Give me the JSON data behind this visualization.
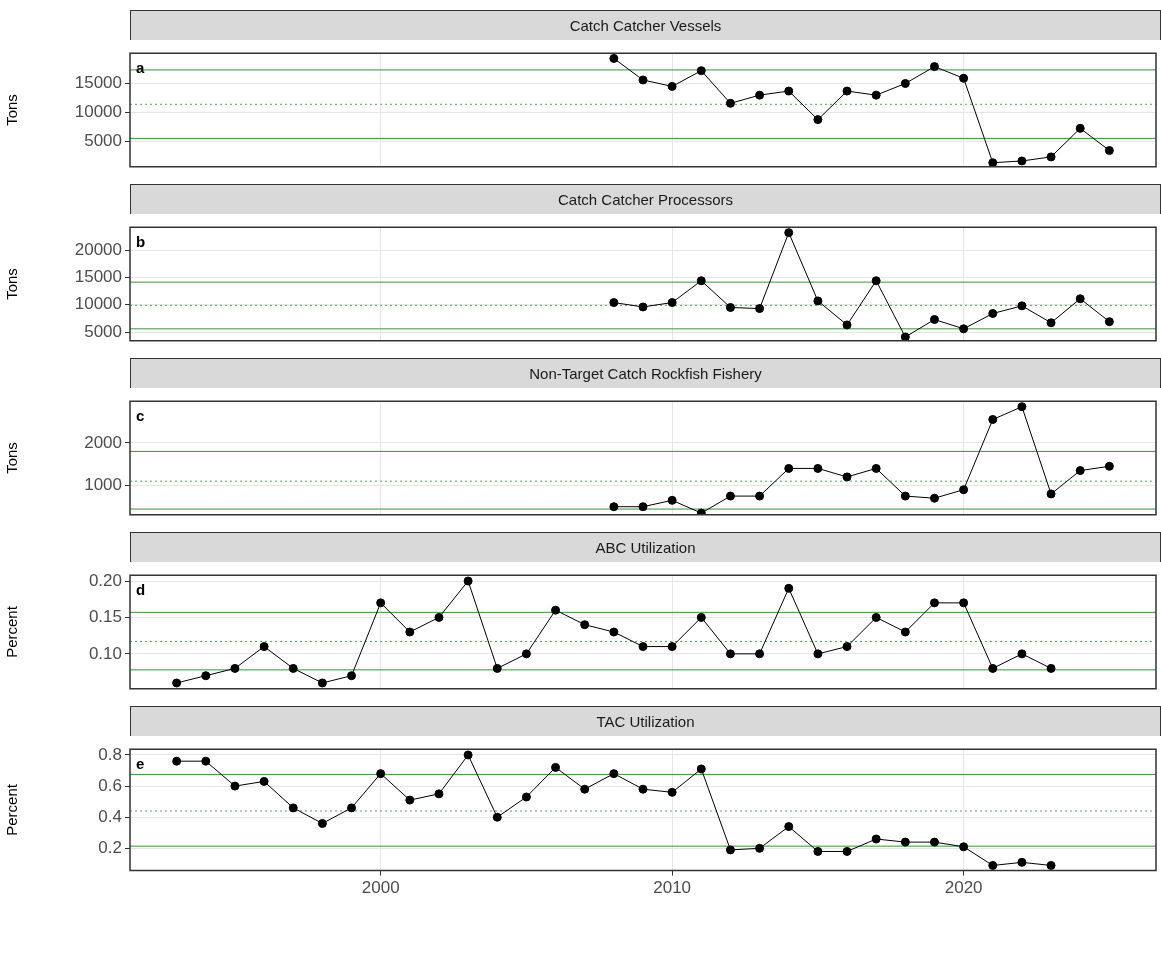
{
  "chart_data": [
    {
      "type": "line",
      "title": "Catch Catcher Vessels",
      "ylabel": "Tons",
      "annotations": [
        "a"
      ],
      "marker": "circle",
      "grid": true,
      "tick_labels": "y",
      "x": [
        2008,
        2009,
        2010,
        2011,
        2012,
        2013,
        2014,
        2015,
        2016,
        2017,
        2018,
        2019,
        2020,
        2021,
        2022,
        2023,
        2024,
        2025
      ],
      "series": [
        {
          "color": "#000000",
          "values": [
            19300,
            15600,
            14500,
            17200,
            11600,
            13000,
            13700,
            8800,
            13700,
            13000,
            15000,
            17900,
            15900,
            1400,
            1700,
            2400,
            7300,
            3500
          ]
        }
      ],
      "xlim": [
        1991.4,
        2026.6
      ],
      "xticks": [
        2000,
        2010,
        2020
      ],
      "ylim": [
        700,
        20200
      ],
      "yticks": [
        5000,
        10000,
        15000
      ],
      "ref_lines": [
        {
          "axis": "y",
          "value": 17330,
          "color": "#3d8f3d",
          "line_style": "solid"
        },
        {
          "axis": "y",
          "value": 11430,
          "color": "#5f9f5f",
          "line_style": "dotted"
        },
        {
          "axis": "y",
          "value": 5580,
          "color": "#3d8f3d",
          "line_style": "solid"
        }
      ]
    },
    {
      "type": "line",
      "title": "Catch Catcher Processors",
      "ylabel": "Tons",
      "annotations": [
        "b"
      ],
      "marker": "circle",
      "grid": true,
      "tick_labels": "y",
      "x": [
        2008,
        2009,
        2010,
        2011,
        2012,
        2013,
        2014,
        2015,
        2016,
        2017,
        2018,
        2019,
        2020,
        2021,
        2022,
        2023,
        2024,
        2025
      ],
      "series": [
        {
          "color": "#000000",
          "values": [
            10400,
            9600,
            10400,
            14400,
            9500,
            9300,
            23200,
            10700,
            6300,
            14400,
            4100,
            7300,
            5600,
            8400,
            9800,
            6700,
            11100,
            6900
          ]
        }
      ],
      "xlim": [
        1991.4,
        2026.6
      ],
      "xticks": [
        2000,
        2010,
        2020
      ],
      "ylim": [
        3400,
        24200
      ],
      "yticks": [
        5000,
        10000,
        15000,
        20000
      ],
      "ref_lines": [
        {
          "axis": "y",
          "value": 14140,
          "color": "#3d8f3d",
          "line_style": "solid"
        },
        {
          "axis": "y",
          "value": 9880,
          "color": "#5f9f5f",
          "line_style": "dotted"
        },
        {
          "axis": "y",
          "value": 5590,
          "color": "#3d8f3d",
          "line_style": "solid"
        }
      ]
    },
    {
      "type": "line",
      "title": "Non-Target Catch Rockfish Fishery",
      "ylabel": "Tons",
      "annotations": [
        "c"
      ],
      "marker": "circle",
      "grid": true,
      "tick_labels": "y",
      "x": [
        2008,
        2009,
        2010,
        2011,
        2012,
        2013,
        2014,
        2015,
        2016,
        2017,
        2018,
        2019,
        2020,
        2021,
        2022,
        2023,
        2024,
        2025
      ],
      "series": [
        {
          "color": "#000000",
          "values": [
            500,
            500,
            650,
            350,
            750,
            750,
            1400,
            1400,
            1200,
            1400,
            750,
            700,
            900,
            2550,
            2850,
            800,
            1350,
            1450
          ]
        }
      ],
      "xlim": [
        1991.4,
        2026.6
      ],
      "xticks": [
        2000,
        2010,
        2020
      ],
      "ylim": [
        310,
        2980
      ],
      "yticks": [
        1000,
        2000
      ],
      "ref_lines": [
        {
          "axis": "y",
          "value": 1800,
          "color": "#3d8f3d",
          "line_style": "solid"
        },
        {
          "axis": "y",
          "value": 1100,
          "color": "#5f9f5f",
          "line_style": "dotted"
        },
        {
          "axis": "y",
          "value": 445,
          "color": "#3d8f3d",
          "line_style": "solid"
        }
      ]
    },
    {
      "type": "line",
      "title": "ABC Utilization",
      "ylabel": "Percent",
      "annotations": [
        "d"
      ],
      "marker": "circle",
      "grid": true,
      "tick_labels": "y",
      "x": [
        1993,
        1994,
        1995,
        1996,
        1997,
        1998,
        1999,
        2000,
        2001,
        2002,
        2003,
        2004,
        2005,
        2006,
        2007,
        2008,
        2009,
        2010,
        2011,
        2012,
        2013,
        2014,
        2015,
        2016,
        2017,
        2018,
        2019,
        2020,
        2021,
        2022,
        2023
      ],
      "series": [
        {
          "color": "#000000",
          "values": [
            0.06,
            0.07,
            0.08,
            0.11,
            0.08,
            0.06,
            0.07,
            0.17,
            0.13,
            0.15,
            0.2,
            0.08,
            0.1,
            0.16,
            0.14,
            0.13,
            0.11,
            0.11,
            0.15,
            0.1,
            0.1,
            0.19,
            0.1,
            0.11,
            0.15,
            0.13,
            0.17,
            0.17,
            0.08,
            0.1,
            0.08
          ]
        }
      ],
      "xlim": [
        1991.4,
        2026.6
      ],
      "xticks": [
        2000,
        2010,
        2020
      ],
      "ylim": [
        0.052,
        0.208
      ],
      "yticks": [
        {
          "value": 0.1,
          "label": "0.10"
        },
        {
          "value": 0.15,
          "label": "0.15"
        },
        {
          "value": 0.2,
          "label": "0.20"
        }
      ],
      "ref_lines": [
        {
          "axis": "y",
          "value": 0.157,
          "color": "#3d8f3d",
          "line_style": "solid"
        },
        {
          "axis": "y",
          "value": 0.117,
          "color": "#5f9f5f",
          "line_style": "dotted"
        },
        {
          "axis": "y",
          "value": 0.078,
          "color": "#3d8f3d",
          "line_style": "solid"
        }
      ]
    },
    {
      "type": "line",
      "title": "TAC Utilization",
      "ylabel": "Percent",
      "annotations": [
        "e"
      ],
      "marker": "circle",
      "grid": true,
      "x": [
        1993,
        1994,
        1995,
        1996,
        1997,
        1998,
        1999,
        2000,
        2001,
        2002,
        2003,
        2004,
        2005,
        2006,
        2007,
        2008,
        2009,
        2010,
        2011,
        2012,
        2013,
        2014,
        2015,
        2016,
        2017,
        2018,
        2019,
        2020,
        2021,
        2022,
        2023
      ],
      "series": [
        {
          "color": "#000000",
          "values": [
            0.76,
            0.76,
            0.6,
            0.63,
            0.46,
            0.36,
            0.46,
            0.68,
            0.51,
            0.55,
            0.8,
            0.4,
            0.53,
            0.72,
            0.58,
            0.68,
            0.58,
            0.56,
            0.71,
            0.19,
            0.2,
            0.34,
            0.18,
            0.18,
            0.26,
            0.24,
            0.24,
            0.21,
            0.09,
            0.11,
            0.09
          ]
        }
      ],
      "xlim": [
        1991.4,
        2026.6
      ],
      "xticks": [
        2000,
        2010,
        2020
      ],
      "ylim": [
        0.057,
        0.837
      ],
      "yticks": [
        0.2,
        0.4,
        0.6,
        0.8
      ],
      "ref_lines": [
        {
          "axis": "y",
          "value": 0.675,
          "color": "#3d8f3d",
          "line_style": "solid"
        },
        {
          "axis": "y",
          "value": 0.44,
          "color": "#5f9f5f",
          "line_style": "dotted"
        },
        {
          "axis": "y",
          "value": 0.214,
          "color": "#3d8f3d",
          "line_style": "solid"
        }
      ]
    }
  ]
}
